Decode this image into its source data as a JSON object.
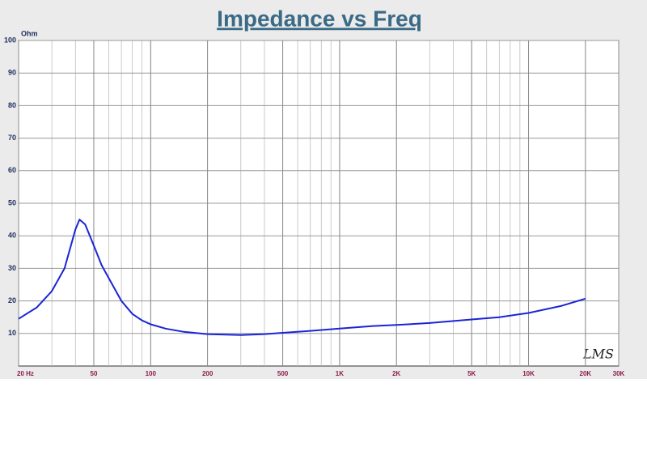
{
  "chart_data": {
    "type": "line",
    "title": "Impedance vs Freq",
    "ylabel": "Ohm",
    "watermark": "LMS",
    "x": [
      20,
      25,
      30,
      35,
      40,
      42,
      45,
      50,
      55,
      60,
      70,
      80,
      90,
      100,
      120,
      150,
      200,
      300,
      400,
      500,
      700,
      1000,
      1500,
      2000,
      3000,
      5000,
      7000,
      10000,
      15000,
      20000
    ],
    "values": [
      14.5,
      18,
      23,
      30,
      42,
      45,
      43.5,
      37,
      31,
      27,
      20,
      16,
      14,
      12.8,
      11.5,
      10.5,
      9.8,
      9.5,
      9.8,
      10.2,
      10.8,
      11.5,
      12.3,
      12.6,
      13.2,
      14.3,
      15,
      16.3,
      18.5,
      20.7
    ],
    "color": "#1a24d6",
    "xlog": true,
    "xlim": [
      20,
      30000
    ],
    "xticks": [
      {
        "value": 20,
        "label": "20 Hz"
      },
      50,
      100,
      200,
      500,
      {
        "value": 1000,
        "label": "1K"
      },
      {
        "value": 2000,
        "label": "2K"
      },
      {
        "value": 5000,
        "label": "5K"
      },
      {
        "value": 10000,
        "label": "10K"
      },
      {
        "value": 20000,
        "label": "20K"
      },
      {
        "value": 30000,
        "label": "30K"
      }
    ],
    "ylim": [
      0,
      100
    ],
    "yticks": [
      10,
      20,
      30,
      40,
      50,
      60,
      70,
      80,
      90,
      100
    ],
    "grid": true
  }
}
